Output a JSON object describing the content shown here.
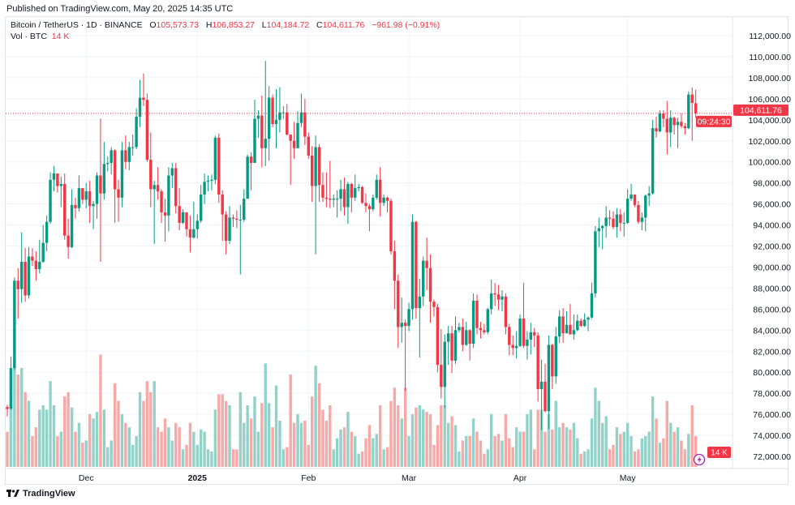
{
  "published": "Published on TradingView.com, May 20, 2025 14:35 UTC",
  "legend": {
    "symbol": "Bitcoin / TetherUS · 1D · BINANCE",
    "o_label": "O",
    "o": "105,573.73",
    "h_label": "H",
    "h": "106,853.27",
    "l_label": "L",
    "l": "104,184.72",
    "c_label": "C",
    "c": "104,611.76",
    "change": "−961.98 (−0.91%)",
    "vol_label": "Vol · BTC",
    "vol_value": "14 K"
  },
  "footer": {
    "brand": "TradingView",
    "logo_icon": "tradingview-logo-icon"
  },
  "colors": {
    "up": "#089981",
    "down": "#f23645",
    "vol_up": "#92d2c8",
    "vol_down": "#f7a9a7",
    "grid": "#f0f3fa"
  },
  "chart_data": {
    "type": "candlestick",
    "title": "Bitcoin / TetherUS · 1D · BINANCE",
    "first_date": "2024-11-09",
    "last_date": "2025-05-20",
    "ylim": [
      71000,
      113000
    ],
    "y_ticks": [
      "112,000.00",
      "110,000.00",
      "108,000.00",
      "106,000.00",
      "104,000.00",
      "102,000.00",
      "100,000.00",
      "98,000.00",
      "96,000.00",
      "94,000.00",
      "92,000.00",
      "90,000.00",
      "88,000.00",
      "86,000.00",
      "84,000.00",
      "82,000.00",
      "80,000.00",
      "78,000.00",
      "76,000.00",
      "74,000.00",
      "72,000.00"
    ],
    "x_ticks": [
      {
        "label": "Dec",
        "index": 22
      },
      {
        "label": "2025",
        "index": 53
      },
      {
        "label": "Feb",
        "index": 84
      },
      {
        "label": "Mar",
        "index": 112
      },
      {
        "label": "Apr",
        "index": 143
      },
      {
        "label": "May",
        "index": 173
      }
    ],
    "last_price": {
      "value": 104611.76,
      "label": "104,611.76",
      "countdown": "09:24:30"
    },
    "last_volume_label": "14 K",
    "grid": true,
    "ohlc_fields": [
      "open",
      "high",
      "low",
      "close"
    ],
    "ohlc": [
      [
        76700,
        76900,
        75800,
        76500
      ],
      [
        76500,
        81500,
        76500,
        80400
      ],
      [
        80400,
        89000,
        80200,
        88700
      ],
      [
        88700,
        89900,
        85100,
        87900
      ],
      [
        87900,
        93300,
        86600,
        90500
      ],
      [
        90500,
        91800,
        86700,
        87300
      ],
      [
        87300,
        91900,
        87000,
        91000
      ],
      [
        91000,
        91800,
        90100,
        90600
      ],
      [
        90600,
        91500,
        88700,
        89800
      ],
      [
        89800,
        92600,
        89400,
        90500
      ],
      [
        90500,
        94000,
        90400,
        92300
      ],
      [
        92300,
        94900,
        91500,
        94300
      ],
      [
        94300,
        99000,
        94100,
        98300
      ],
      [
        98300,
        99600,
        97200,
        98900
      ],
      [
        98900,
        98900,
        97100,
        97700
      ],
      [
        97700,
        98600,
        95700,
        97900
      ],
      [
        97900,
        98900,
        92600,
        93000
      ],
      [
        93000,
        94600,
        90800,
        91900
      ],
      [
        91900,
        97400,
        91800,
        95900
      ],
      [
        95900,
        96600,
        94600,
        95600
      ],
      [
        95600,
        98700,
        95300,
        97500
      ],
      [
        97500,
        97500,
        96000,
        96400
      ],
      [
        96400,
        98000,
        95600,
        97200
      ],
      [
        97200,
        98200,
        94200,
        95800
      ],
      [
        95800,
        96300,
        93600,
        96000
      ],
      [
        96000,
        99000,
        94600,
        98700
      ],
      [
        98700,
        104100,
        90500,
        97000
      ],
      [
        97000,
        101900,
        96400,
        99800
      ],
      [
        99800,
        100500,
        99100,
        99900
      ],
      [
        99900,
        101400,
        98800,
        101100
      ],
      [
        101100,
        101200,
        94200,
        97400
      ],
      [
        97400,
        98300,
        94300,
        96600
      ],
      [
        96600,
        101900,
        95700,
        101100
      ],
      [
        101100,
        102500,
        99300,
        100000
      ],
      [
        100000,
        101900,
        99200,
        101400
      ],
      [
        101400,
        102600,
        100600,
        101400
      ],
      [
        101400,
        105100,
        101200,
        104300
      ],
      [
        104300,
        107800,
        103300,
        106100
      ],
      [
        106100,
        108400,
        105300,
        105900
      ],
      [
        105900,
        106500,
        100000,
        100200
      ],
      [
        100200,
        102800,
        95700,
        97400
      ],
      [
        97400,
        98200,
        92200,
        97800
      ],
      [
        97800,
        99500,
        96400,
        97200
      ],
      [
        97200,
        97400,
        94200,
        95200
      ],
      [
        95200,
        96500,
        92400,
        94900
      ],
      [
        94900,
        99500,
        93400,
        98700
      ],
      [
        98700,
        99900,
        97500,
        99400
      ],
      [
        99400,
        99900,
        95100,
        95800
      ],
      [
        95800,
        97500,
        93500,
        94200
      ],
      [
        94200,
        95500,
        94100,
        95200
      ],
      [
        95200,
        95200,
        92900,
        93600
      ],
      [
        93600,
        94900,
        91400,
        92800
      ],
      [
        92800,
        96200,
        92700,
        93600
      ],
      [
        93600,
        95000,
        92700,
        94400
      ],
      [
        94400,
        97800,
        94200,
        96900
      ],
      [
        96900,
        98900,
        96000,
        98100
      ],
      [
        98100,
        98700,
        97200,
        98200
      ],
      [
        98200,
        98800,
        97300,
        98300
      ],
      [
        98300,
        102500,
        97900,
        102300
      ],
      [
        102300,
        102700,
        96100,
        96900
      ],
      [
        96900,
        97300,
        92500,
        95000
      ],
      [
        95000,
        95300,
        91200,
        92500
      ],
      [
        92500,
        95800,
        92200,
        94700
      ],
      [
        94700,
        95000,
        93800,
        94600
      ],
      [
        94600,
        95400,
        93700,
        94500
      ],
      [
        94500,
        95900,
        89300,
        94500
      ],
      [
        94500,
        97400,
        94300,
        96500
      ],
      [
        96500,
        100700,
        96500,
        100500
      ],
      [
        100500,
        100900,
        97300,
        99900
      ],
      [
        99900,
        105900,
        99900,
        104100
      ],
      [
        104100,
        104900,
        102300,
        104400
      ],
      [
        104400,
        106300,
        99500,
        101300
      ],
      [
        101300,
        109600,
        99600,
        102200
      ],
      [
        102200,
        107200,
        100100,
        106100
      ],
      [
        106100,
        106400,
        103300,
        103600
      ],
      [
        103600,
        106900,
        101300,
        104000
      ],
      [
        104000,
        107100,
        102800,
        104700
      ],
      [
        104700,
        105300,
        104100,
        104700
      ],
      [
        104700,
        105500,
        102500,
        102600
      ],
      [
        102600,
        102600,
        97800,
        102000
      ],
      [
        102000,
        103800,
        100300,
        101300
      ],
      [
        101300,
        104800,
        101300,
        103700
      ],
      [
        103700,
        106500,
        103300,
        104700
      ],
      [
        104700,
        106000,
        101600,
        102400
      ],
      [
        102400,
        102800,
        100300,
        100600
      ],
      [
        100600,
        101500,
        96200,
        97700
      ],
      [
        97700,
        102500,
        91200,
        101400
      ],
      [
        101400,
        101700,
        96200,
        97800
      ],
      [
        97800,
        99000,
        96200,
        96600
      ],
      [
        96600,
        99000,
        95700,
        96500
      ],
      [
        96500,
        100100,
        95600,
        96400
      ],
      [
        96400,
        96900,
        95700,
        96500
      ],
      [
        96500,
        97300,
        94700,
        96500
      ],
      [
        96500,
        98300,
        95300,
        97400
      ],
      [
        97400,
        98500,
        94900,
        95700
      ],
      [
        95700,
        98100,
        94100,
        97900
      ],
      [
        97900,
        98000,
        95200,
        96600
      ],
      [
        96600,
        98800,
        96300,
        97500
      ],
      [
        97500,
        97900,
        97200,
        97600
      ],
      [
        97600,
        97700,
        96000,
        96100
      ],
      [
        96100,
        97000,
        95200,
        95800
      ],
      [
        95800,
        96000,
        93400,
        95500
      ],
      [
        95500,
        96900,
        95300,
        96600
      ],
      [
        96600,
        98800,
        96400,
        98300
      ],
      [
        98300,
        99500,
        94800,
        96100
      ],
      [
        96100,
        96900,
        95800,
        96600
      ],
      [
        96600,
        96700,
        95200,
        96300
      ],
      [
        96300,
        96500,
        91200,
        91500
      ],
      [
        91500,
        92500,
        86000,
        88700
      ],
      [
        88700,
        89300,
        82300,
        84300
      ],
      [
        84300,
        87100,
        82800,
        84700
      ],
      [
        84700,
        85000,
        78200,
        84400
      ],
      [
        84400,
        86600,
        83900,
        86000
      ],
      [
        86000,
        95000,
        85000,
        94300
      ],
      [
        94300,
        94400,
        85100,
        86100
      ],
      [
        86100,
        88900,
        81400,
        87200
      ],
      [
        87200,
        91000,
        86300,
        90600
      ],
      [
        90600,
        92800,
        87800,
        89900
      ],
      [
        89900,
        91200,
        84700,
        86700
      ],
      [
        86700,
        86900,
        85300,
        86200
      ],
      [
        86200,
        86500,
        80000,
        80700
      ],
      [
        80700,
        84100,
        77500,
        78600
      ],
      [
        78600,
        83600,
        76600,
        82900
      ],
      [
        82900,
        84400,
        80700,
        83700
      ],
      [
        83700,
        84400,
        79900,
        81100
      ],
      [
        81100,
        85300,
        80800,
        84000
      ],
      [
        84000,
        84700,
        83800,
        84300
      ],
      [
        84300,
        85100,
        82000,
        82600
      ],
      [
        82600,
        84800,
        82500,
        84000
      ],
      [
        84000,
        84100,
        81100,
        82700
      ],
      [
        82700,
        87500,
        82300,
        86800
      ],
      [
        86800,
        87400,
        83600,
        84200
      ],
      [
        84200,
        84800,
        83200,
        84000
      ],
      [
        84000,
        84600,
        83600,
        83800
      ],
      [
        83800,
        86100,
        83600,
        86000
      ],
      [
        86000,
        88800,
        85500,
        87500
      ],
      [
        87500,
        88500,
        86300,
        87400
      ],
      [
        87400,
        88300,
        85900,
        86900
      ],
      [
        86900,
        87800,
        85800,
        87200
      ],
      [
        87200,
        87500,
        83600,
        84300
      ],
      [
        84300,
        84600,
        81600,
        82600
      ],
      [
        82600,
        83500,
        81600,
        82300
      ],
      [
        82300,
        83900,
        81300,
        82500
      ],
      [
        82500,
        85500,
        82400,
        85100
      ],
      [
        85100,
        88500,
        82300,
        82500
      ],
      [
        82500,
        83900,
        81200,
        83100
      ],
      [
        83100,
        84700,
        81700,
        83800
      ],
      [
        83800,
        84200,
        82400,
        83500
      ],
      [
        83500,
        83800,
        77200,
        78400
      ],
      [
        78400,
        81200,
        74500,
        79100
      ],
      [
        79100,
        80800,
        76200,
        76300
      ],
      [
        76300,
        83500,
        74600,
        82600
      ],
      [
        82600,
        82700,
        78400,
        79600
      ],
      [
        79600,
        84300,
        78900,
        83400
      ],
      [
        83400,
        85900,
        82800,
        85300
      ],
      [
        85300,
        86100,
        82800,
        83700
      ],
      [
        83700,
        85800,
        83700,
        84500
      ],
      [
        84500,
        86500,
        83600,
        83600
      ],
      [
        83600,
        85500,
        83100,
        84000
      ],
      [
        84000,
        85500,
        83900,
        84900
      ],
      [
        84900,
        85100,
        84300,
        84400
      ],
      [
        84400,
        85600,
        84300,
        85000
      ],
      [
        85000,
        85300,
        83900,
        85200
      ],
      [
        85200,
        88500,
        85100,
        87500
      ],
      [
        87500,
        93900,
        87100,
        93400
      ],
      [
        93400,
        94700,
        91900,
        93700
      ],
      [
        93700,
        94000,
        91700,
        93900
      ],
      [
        93900,
        95800,
        92800,
        94700
      ],
      [
        94700,
        95400,
        93900,
        94600
      ],
      [
        94600,
        95300,
        93600,
        93800
      ],
      [
        93800,
        95600,
        92800,
        95000
      ],
      [
        95000,
        95500,
        93400,
        94200
      ],
      [
        94200,
        95200,
        92900,
        94200
      ],
      [
        94200,
        97400,
        94100,
        96500
      ],
      [
        96500,
        97900,
        96300,
        96900
      ],
      [
        96900,
        96900,
        95700,
        95900
      ],
      [
        95900,
        96300,
        94100,
        94300
      ],
      [
        94300,
        95200,
        93500,
        94700
      ],
      [
        94700,
        96900,
        93400,
        96800
      ],
      [
        96800,
        97700,
        95800,
        97000
      ],
      [
        97000,
        104000,
        96900,
        103200
      ],
      [
        103200,
        104300,
        102300,
        102900
      ],
      [
        102900,
        104900,
        102800,
        104600
      ],
      [
        104600,
        104900,
        103300,
        104100
      ],
      [
        104100,
        105800,
        100700,
        102800
      ],
      [
        102800,
        104900,
        101400,
        104200
      ],
      [
        104200,
        104300,
        102600,
        103500
      ],
      [
        103500,
        104200,
        101300,
        103800
      ],
      [
        103800,
        104600,
        103200,
        103400
      ],
      [
        103400,
        103700,
        102600,
        103200
      ],
      [
        103200,
        106700,
        103100,
        106400
      ],
      [
        106400,
        107100,
        102000,
        105600
      ],
      [
        105573.73,
        106853.27,
        104184.72,
        104611.76
      ]
    ],
    "volume": [
      16000,
      28000,
      48000,
      42000,
      45000,
      34000,
      30000,
      14000,
      18000,
      26000,
      28000,
      26000,
      39000,
      28000,
      14000,
      16000,
      32000,
      34000,
      27000,
      16000,
      20000,
      11000,
      12000,
      24000,
      22000,
      25000,
      51000,
      26000,
      9000,
      12000,
      38000,
      30000,
      24000,
      20000,
      18000,
      10000,
      14000,
      34000,
      30000,
      39000,
      34000,
      39000,
      18000,
      16000,
      22000,
      18000,
      12000,
      20000,
      18000,
      8000,
      10000,
      20000,
      16000,
      10000,
      17000,
      16000,
      8000,
      7000,
      26000,
      33000,
      33000,
      30000,
      28000,
      8000,
      8000,
      34000,
      20000,
      28000,
      22000,
      32000,
      16000,
      29000,
      47000,
      29000,
      18000,
      37000,
      21000,
      8000,
      9000,
      42000,
      20000,
      24000,
      20000,
      21000,
      10000,
      32000,
      46000,
      38000,
      26000,
      21000,
      28000,
      8000,
      13000,
      17000,
      18000,
      25000,
      16000,
      14000,
      6000,
      7000,
      13000,
      19000,
      13000,
      15000,
      28000,
      8000,
      9000,
      30000,
      36000,
      28000,
      22000,
      36000,
      14000,
      24000,
      27000,
      28000,
      26000,
      25000,
      24000,
      10000,
      19000,
      28000,
      28000,
      20000,
      23000,
      19000,
      7000,
      12000,
      14000,
      14000,
      22000,
      16000,
      12000,
      6000,
      8000,
      24000,
      14000,
      15000,
      12000,
      24000,
      13000,
      9000,
      18000,
      16000,
      16000,
      24000,
      26000,
      8000,
      26000,
      26000,
      16000,
      24000,
      17000,
      30000,
      18000,
      20000,
      18000,
      17000,
      20000,
      13000,
      6000,
      7000,
      8000,
      22000,
      36000,
      30000,
      20000,
      23000,
      8000,
      10000,
      18000,
      15000,
      16000,
      20000,
      14000,
      7000,
      8000,
      13000,
      14000,
      16000,
      32000,
      22000,
      11000,
      13000,
      30000,
      20000,
      16000,
      18000,
      12000,
      8000,
      15000,
      28000,
      14000
    ]
  }
}
